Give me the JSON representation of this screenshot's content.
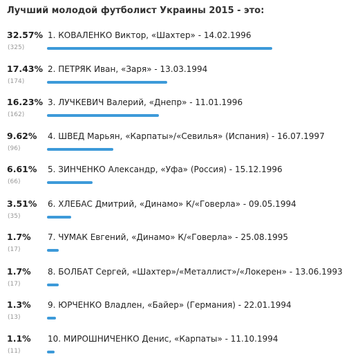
{
  "poll": {
    "title": "Лучший молодой футболист Украины 2015 - это:",
    "bar_color": "#3d9ad9",
    "options": [
      {
        "percent": "32.57%",
        "label": "1. КОВАЛЕНКО Виктор, «Шахтер» - 14.02.1996",
        "votes": "(325)",
        "share": 32.57
      },
      {
        "percent": "17.43%",
        "label": "2. ПЕТРЯК Иван, «Заря» - 13.03.1994",
        "votes": "(174)",
        "share": 17.43
      },
      {
        "percent": "16.23%",
        "label": "3. ЛУЧКЕВИЧ Валерий, «Днепр» - 11.01.1996",
        "votes": "(162)",
        "share": 16.23
      },
      {
        "percent": "9.62%",
        "label": "4. ШВЕД Марьян, «Карпаты»/«Севилья» (Испания) - 16.07.1997",
        "votes": "(96)",
        "share": 9.62
      },
      {
        "percent": "6.61%",
        "label": "5. ЗИНЧЕНКО Александр, «Уфа» (Россия) - 15.12.1996",
        "votes": "(66)",
        "share": 6.61
      },
      {
        "percent": "3.51%",
        "label": "6. ХЛЕБАС Дмитрий, «Динамо» К/«Говерла» - 09.05.1994",
        "votes": "(35)",
        "share": 3.51
      },
      {
        "percent": "1.7%",
        "label": "7. ЧУМАК Евгений, «Динамо» К/«Говерла» - 25.08.1995",
        "votes": "(17)",
        "share": 1.7
      },
      {
        "percent": "1.7%",
        "label": "8. БОЛБАТ Сергей, «Шахтер»/«Металлист»/«Локерен» - 13.06.1993",
        "votes": "(17)",
        "share": 1.7
      },
      {
        "percent": "1.3%",
        "label": "9. ЮРЧЕНКО Владлен, «Байер» (Германия) - 22.01.1994",
        "votes": "(13)",
        "share": 1.3
      },
      {
        "percent": "1.1%",
        "label": "10. МИРОШНИЧЕНКО Денис, «Карпаты» - 11.10.1994",
        "votes": "(11)",
        "share": 1.1
      }
    ]
  }
}
